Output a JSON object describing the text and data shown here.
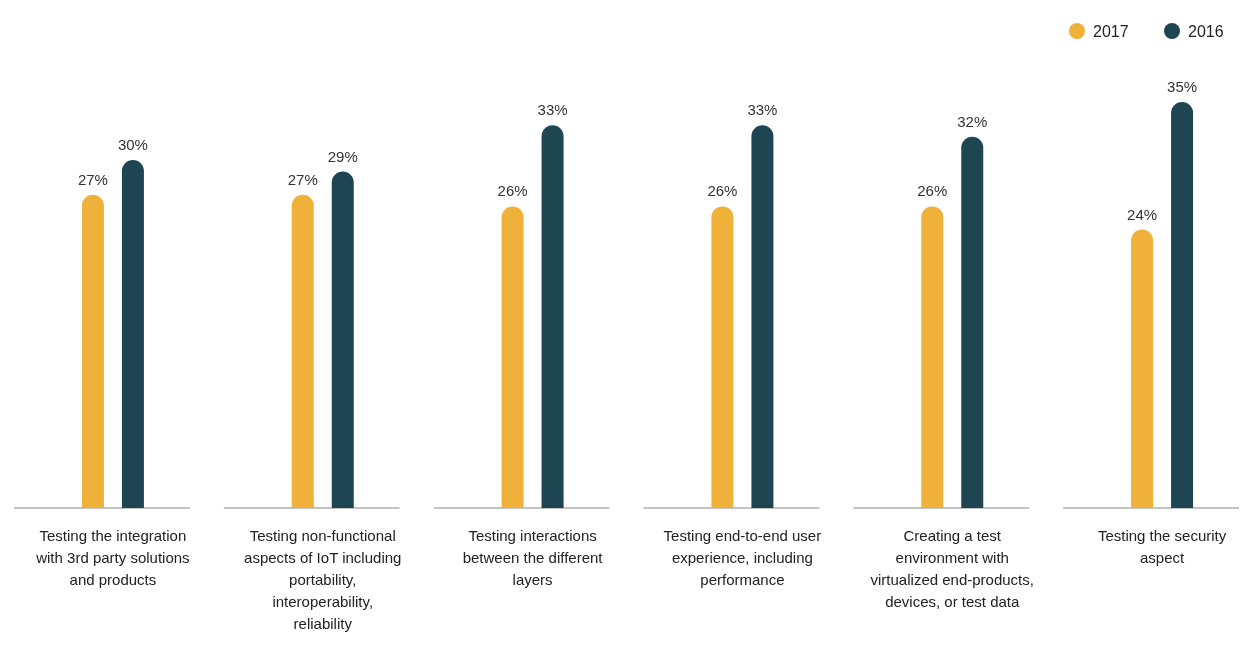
{
  "chart_data": {
    "type": "bar",
    "categories": [
      "Testing the integration with 3rd party solutions and products",
      "Testing non-functional aspects of IoT including portability, interoperability, reliability",
      "Testing interactions between the different layers",
      "Testing end-to-end user experience, including performance",
      "Creating a test environment with virtualized end-products, devices, or test data",
      "Testing the security aspect"
    ],
    "series": [
      {
        "name": "2017",
        "color": "#f0b13a",
        "values": [
          27,
          27,
          26,
          26,
          26,
          24
        ],
        "value_labels": [
          "27%",
          "27%",
          "26%",
          "26%",
          "26%",
          "24%"
        ]
      },
      {
        "name": "2016",
        "color": "#1d4552",
        "values": [
          30,
          29,
          33,
          33,
          32,
          35
        ],
        "value_labels": [
          "30%",
          "29%",
          "33%",
          "33%",
          "32%",
          "35%"
        ]
      }
    ],
    "legend": "top right"
  }
}
